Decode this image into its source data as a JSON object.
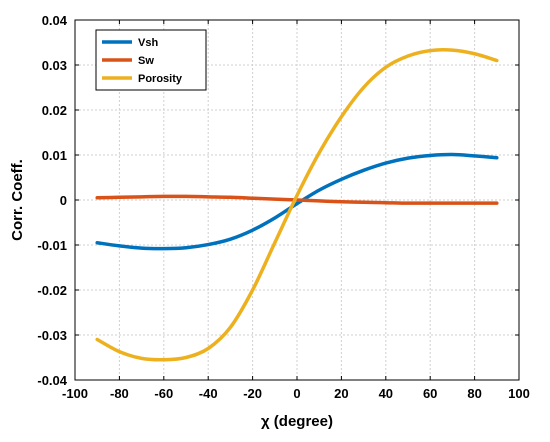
{
  "chart_data": {
    "type": "line",
    "xlabel": "χ (degree)",
    "ylabel": "Corr. Coeff.",
    "xlim": [
      -100,
      100
    ],
    "ylim": [
      -0.04,
      0.04
    ],
    "xticks": [
      "-100",
      "-80",
      "-60",
      "-40",
      "-20",
      "0",
      "20",
      "40",
      "60",
      "80",
      "100"
    ],
    "yticks": [
      "-0.04",
      "-0.03",
      "-0.02",
      "-0.01",
      "0",
      "0.01",
      "0.02",
      "0.03",
      "0.04"
    ],
    "grid": true,
    "legend_position": "top-left",
    "x": [
      -90,
      -80,
      -70,
      -60,
      -50,
      -40,
      -30,
      -20,
      -10,
      0,
      10,
      20,
      30,
      40,
      50,
      60,
      70,
      80,
      90
    ],
    "series": [
      {
        "name": "Vsh",
        "color": "#0072BD",
        "values": [
          -0.0095,
          -0.0102,
          -0.0107,
          -0.0108,
          -0.0106,
          -0.0099,
          -0.0087,
          -0.0067,
          -0.004,
          -0.0008,
          0.0022,
          0.0046,
          0.0066,
          0.0082,
          0.0093,
          0.0099,
          0.0101,
          0.0098,
          0.0094
        ]
      },
      {
        "name": "Sw",
        "color": "#D95319",
        "values": [
          0.0005,
          0.0006,
          0.0007,
          0.0008,
          0.0008,
          0.0007,
          0.0006,
          0.0004,
          0.0002,
          0.0,
          -0.0002,
          -0.0004,
          -0.0005,
          -0.0006,
          -0.0007,
          -0.0007,
          -0.0007,
          -0.0007,
          -0.0007
        ]
      },
      {
        "name": "Porosity",
        "color": "#EDB120",
        "values": [
          -0.031,
          -0.0337,
          -0.0352,
          -0.0355,
          -0.035,
          -0.033,
          -0.0283,
          -0.02,
          -0.0095,
          0.001,
          0.0105,
          0.0185,
          0.025,
          0.0295,
          0.032,
          0.0332,
          0.0333,
          0.0325,
          0.031
        ]
      }
    ]
  }
}
